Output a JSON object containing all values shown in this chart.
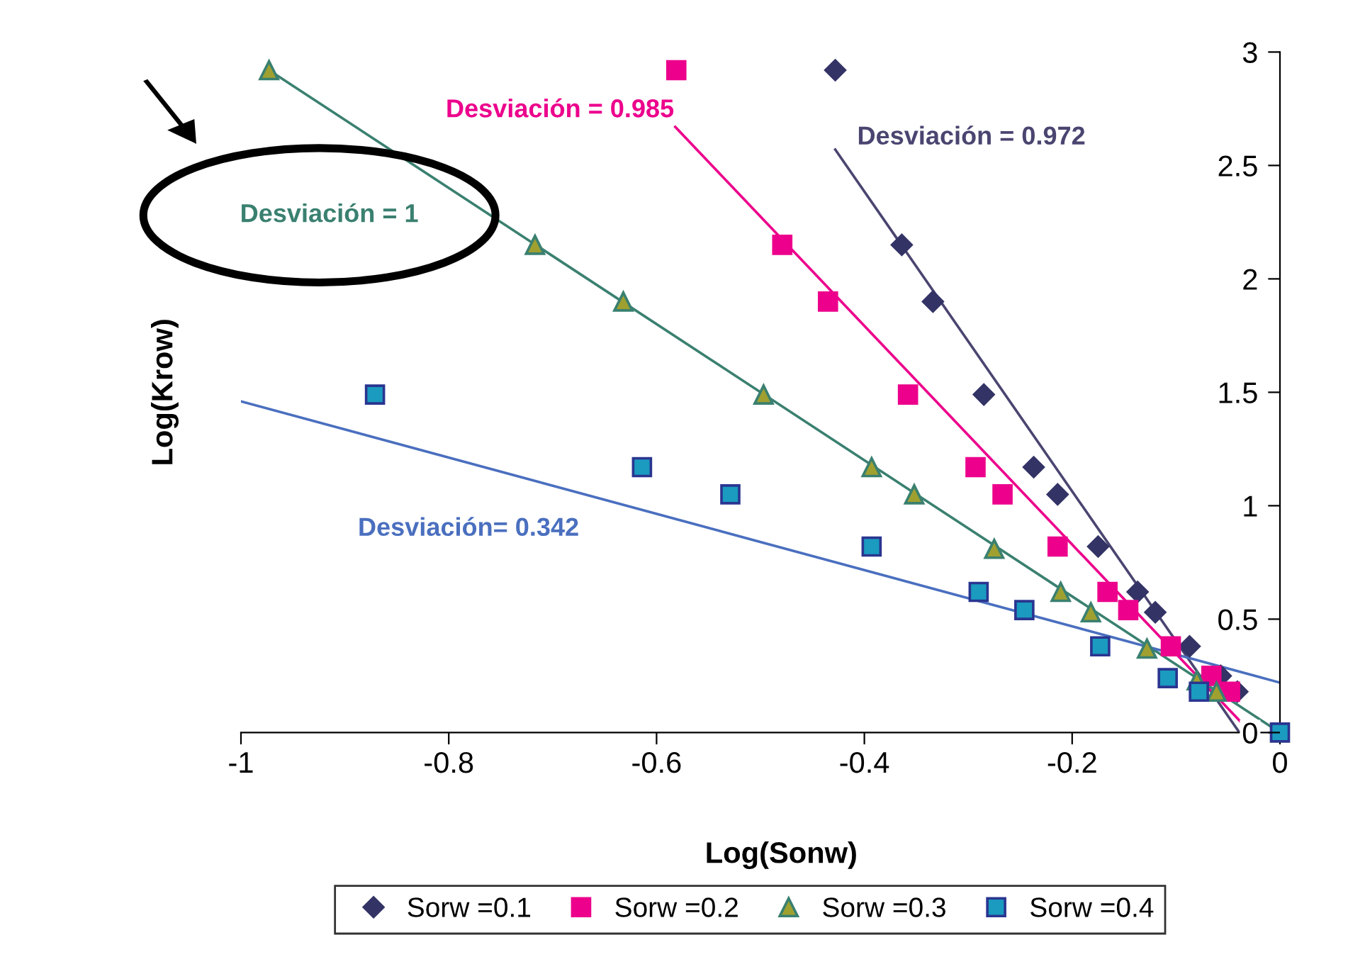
{
  "chart_data": {
    "type": "scatter",
    "xlabel": "Log(Sonw)",
    "ylabel": "Log(Krow)",
    "xlim": [
      -1,
      0
    ],
    "ylim": [
      0,
      3
    ],
    "xticks": [
      -1,
      -0.8,
      -0.6,
      -0.4,
      -0.2,
      0
    ],
    "yticks": [
      0,
      0.5,
      1,
      1.5,
      2,
      2.5,
      3
    ],
    "grid": false,
    "legend": "bottom",
    "series": [
      {
        "name": "Sorw =0.1",
        "color": "#333366",
        "marker": "diamond",
        "x": [
          -0.428,
          -0.364,
          -0.334,
          -0.285,
          -0.237,
          -0.214,
          -0.175,
          -0.137,
          -0.12,
          -0.087,
          -0.057,
          -0.041
        ],
        "values": [
          2.92,
          2.15,
          1.9,
          1.49,
          1.17,
          1.05,
          0.82,
          0.62,
          0.53,
          0.38,
          0.25,
          0.18
        ]
      },
      {
        "name": "Sorw =0.2",
        "color": "#ec008c",
        "marker": "square",
        "x": [
          -0.581,
          -0.479,
          -0.435,
          -0.358,
          -0.293,
          -0.267,
          -0.214,
          -0.166,
          -0.146,
          -0.105,
          -0.066,
          -0.048
        ],
        "values": [
          2.92,
          2.15,
          1.9,
          1.49,
          1.17,
          1.05,
          0.82,
          0.62,
          0.54,
          0.38,
          0.25,
          0.18
        ]
      },
      {
        "name": "Sorw =0.3",
        "color": "#a0a030",
        "marker": "triangle",
        "x": [
          -0.973,
          -0.717,
          -0.632,
          -0.497,
          -0.393,
          -0.352,
          -0.275,
          -0.211,
          -0.182,
          -0.128,
          -0.08,
          -0.061
        ],
        "values": [
          2.92,
          2.15,
          1.9,
          1.49,
          1.17,
          1.05,
          0.81,
          0.62,
          0.53,
          0.37,
          0.23,
          0.18
        ]
      },
      {
        "name": "Sorw =0.4",
        "color": "#1a9bbf",
        "marker": "square",
        "x": [
          -0.871,
          -0.614,
          -0.529,
          -0.393,
          -0.29,
          -0.246,
          -0.173,
          -0.108,
          -0.078,
          0
        ],
        "values": [
          1.49,
          1.17,
          1.05,
          0.82,
          0.62,
          0.54,
          0.38,
          0.24,
          0.18,
          0
        ]
      },
      {
        "type": "line",
        "color": "#4a4570",
        "x": [
          -0.428,
          -0.039
        ],
        "values": [
          2.57,
          0
        ]
      },
      {
        "type": "line",
        "color": "#ec008c",
        "x": [
          -0.582,
          -0.028
        ],
        "values": [
          2.67,
          0
        ]
      },
      {
        "type": "line",
        "color": "#3a8070",
        "x": [
          -0.973,
          0
        ],
        "values": [
          2.92,
          0
        ]
      },
      {
        "type": "line",
        "color": "#4a6fbf",
        "x": [
          -1,
          0
        ],
        "values": [
          1.46,
          0.22
        ]
      }
    ],
    "annotations": [
      "Desviación = 0.972",
      "Desviación = 0.985",
      "Desviación = 1",
      "Desviación= 0.342"
    ]
  }
}
